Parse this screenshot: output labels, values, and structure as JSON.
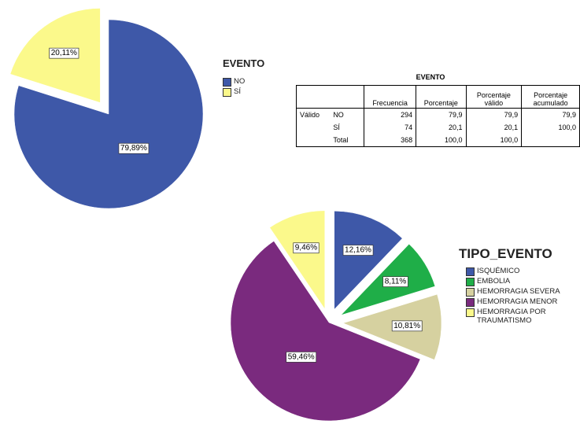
{
  "chart_data": [
    {
      "type": "pie",
      "title": "EVENTO",
      "categories": [
        "NO",
        "SÍ"
      ],
      "values": [
        79.89,
        20.11
      ],
      "value_labels": [
        "79,89%",
        "20,11%"
      ],
      "colors": [
        "#3e58a8",
        "#fbf98b"
      ],
      "exploded": [
        false,
        true
      ]
    },
    {
      "type": "pie",
      "title": "TIPO_EVENTO",
      "categories": [
        "ISQUÉMICO",
        "EMBOLIA",
        "HEMORRAGIA SEVERA",
        "HEMORRAGIA MENOR",
        "HEMORRAGIA POR TRAUMATISMO"
      ],
      "values": [
        12.16,
        8.11,
        10.81,
        59.46,
        9.46
      ],
      "value_labels": [
        "12,16%",
        "8,11%",
        "10,81%",
        "59,46%",
        "9,46%"
      ],
      "colors": [
        "#3e58a8",
        "#1fae48",
        "#d6d1a0",
        "#7a2a7e",
        "#fbf98b"
      ],
      "exploded": [
        true,
        true,
        true,
        false,
        true
      ]
    }
  ],
  "table": {
    "title": "EVENTO",
    "header": [
      null,
      null,
      "Frecuencia",
      "Porcentaje",
      "Porcentaje válido",
      "Porcentaje acumulado"
    ],
    "rows": [
      [
        "Válido",
        "NO",
        "294",
        "79,9",
        "79,9",
        "79,9"
      ],
      [
        null,
        "SÍ",
        "74",
        "20,1",
        "20,1",
        "100,0"
      ],
      [
        null,
        "Total",
        "368",
        "100,0",
        "100,0",
        null
      ]
    ]
  }
}
